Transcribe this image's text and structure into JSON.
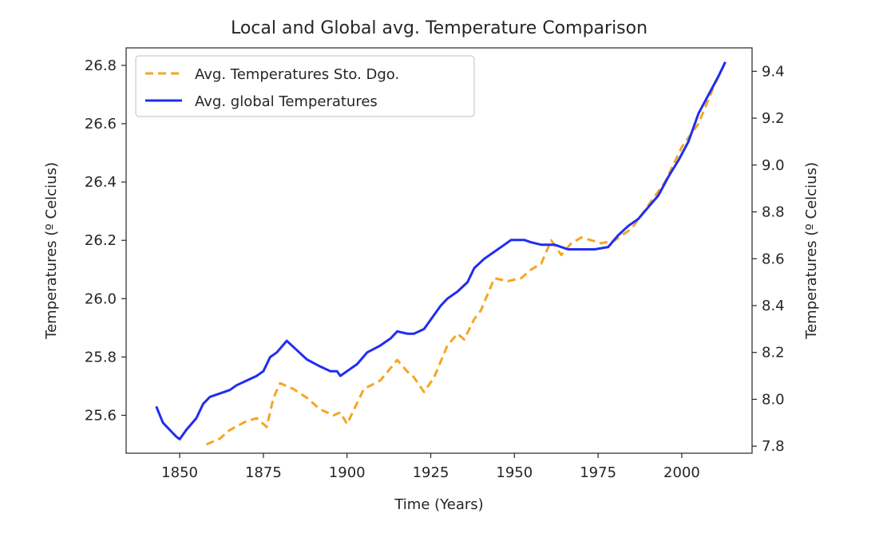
{
  "chart_data": {
    "type": "line",
    "title": "Local and Global avg. Temperature Comparison",
    "xlabel": "Time (Years)",
    "ylabel_left": "Temperatures (º Celcius)",
    "ylabel_right": "Temperatures (º Celcius)",
    "xlim": [
      1834,
      2021
    ],
    "ylim_left": [
      25.47,
      26.86
    ],
    "ylim_right": [
      7.77,
      9.5
    ],
    "xticks": [
      1850,
      1875,
      1900,
      1925,
      1950,
      1975,
      2000
    ],
    "yticks_left": [
      25.6,
      25.8,
      26.0,
      26.2,
      26.4,
      26.6,
      26.8
    ],
    "yticks_right": [
      7.8,
      8.0,
      8.2,
      8.4,
      8.6,
      8.8,
      9.0,
      9.2,
      9.4
    ],
    "yticks_left_labels": [
      "25.6",
      "25.8",
      "26.0",
      "26.2",
      "26.4",
      "26.6",
      "26.8"
    ],
    "yticks_right_labels": [
      "7.8",
      "8.0",
      "8.2",
      "8.4",
      "8.6",
      "8.8",
      "9.0",
      "9.2",
      "9.4"
    ],
    "grid": false,
    "legend_position": "top-left",
    "series": [
      {
        "name": "Avg. Temperatures Sto. Dgo.",
        "axis": "left",
        "style": "dashed",
        "color": "#f5a623",
        "x": [
          1858,
          1862,
          1865,
          1870,
          1873,
          1876,
          1878,
          1880,
          1884,
          1888,
          1892,
          1896,
          1898,
          1900,
          1905,
          1910,
          1915,
          1918,
          1920,
          1923,
          1926,
          1930,
          1933,
          1935,
          1938,
          1940,
          1944,
          1948,
          1952,
          1955,
          1958,
          1961,
          1964,
          1967,
          1970,
          1973,
          1976,
          1980,
          1985,
          1990,
          1995,
          2000,
          2005,
          2010,
          2013
        ],
        "y": [
          25.5,
          25.52,
          25.55,
          25.58,
          25.59,
          25.56,
          25.66,
          25.71,
          25.69,
          25.66,
          25.62,
          25.6,
          25.61,
          25.57,
          25.69,
          25.72,
          25.79,
          25.75,
          25.73,
          25.68,
          25.73,
          25.84,
          25.88,
          25.86,
          25.93,
          25.96,
          26.07,
          26.06,
          26.07,
          26.1,
          26.12,
          26.2,
          26.15,
          26.19,
          26.21,
          26.2,
          26.19,
          26.2,
          26.24,
          26.32,
          26.4,
          26.52,
          26.6,
          26.74,
          26.81
        ]
      },
      {
        "name": "Avg. global Temperatures",
        "axis": "right",
        "style": "solid",
        "color": "#1f2ef0",
        "x": [
          1843,
          1845,
          1847,
          1849,
          1850,
          1852,
          1855,
          1857,
          1859,
          1861,
          1863,
          1865,
          1867,
          1870,
          1873,
          1875,
          1877,
          1879,
          1882,
          1885,
          1888,
          1892,
          1895,
          1897,
          1898,
          1900,
          1903,
          1906,
          1910,
          1913,
          1915,
          1918,
          1920,
          1923,
          1926,
          1928,
          1930,
          1933,
          1936,
          1938,
          1941,
          1944,
          1947,
          1949,
          1951,
          1953,
          1955,
          1958,
          1962,
          1966,
          1970,
          1974,
          1978,
          1981,
          1984,
          1987,
          1990,
          1993,
          1996,
          1999,
          2002,
          2005,
          2008,
          2011,
          2013
        ],
        "y": [
          7.97,
          7.9,
          7.87,
          7.84,
          7.83,
          7.87,
          7.92,
          7.98,
          8.01,
          8.02,
          8.03,
          8.04,
          8.06,
          8.08,
          8.1,
          8.12,
          8.18,
          8.2,
          8.25,
          8.21,
          8.17,
          8.14,
          8.12,
          8.12,
          8.1,
          8.12,
          8.15,
          8.2,
          8.23,
          8.26,
          8.29,
          8.28,
          8.28,
          8.3,
          8.36,
          8.4,
          8.43,
          8.46,
          8.5,
          8.56,
          8.6,
          8.63,
          8.66,
          8.68,
          8.68,
          8.68,
          8.67,
          8.66,
          8.66,
          8.64,
          8.64,
          8.64,
          8.65,
          8.7,
          8.74,
          8.77,
          8.82,
          8.87,
          8.95,
          9.02,
          9.1,
          9.22,
          9.3,
          9.38,
          9.44
        ]
      }
    ]
  }
}
